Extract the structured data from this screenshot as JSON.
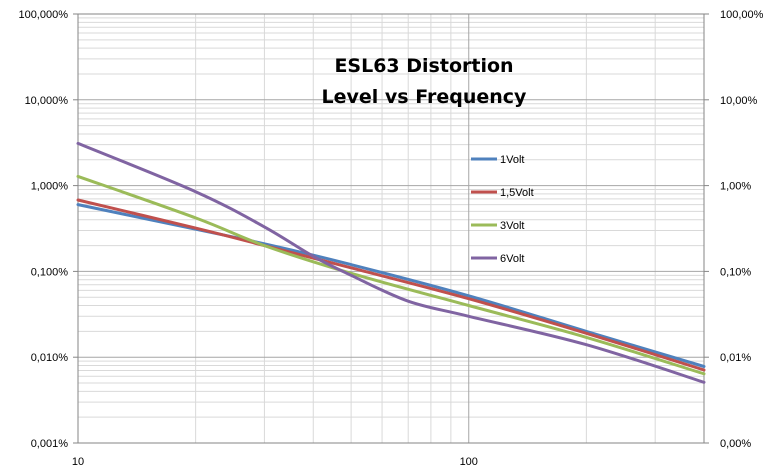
{
  "chart_data": {
    "type": "line",
    "title_lines": [
      "ESL63 Distortion",
      "Level vs Frequency"
    ],
    "xscale": "log",
    "yscale": "log",
    "xlim": [
      10,
      400
    ],
    "ylim": [
      0.001,
      100
    ],
    "x_ticks": [
      {
        "value": 10,
        "label": "10"
      },
      {
        "value": 100,
        "label": "100"
      }
    ],
    "y_ticks_left": [
      {
        "value": 100,
        "label": "100,000%"
      },
      {
        "value": 10,
        "label": "10,000%"
      },
      {
        "value": 1,
        "label": "1,000%"
      },
      {
        "value": 0.1,
        "label": "0,100%"
      },
      {
        "value": 0.01,
        "label": "0,010%"
      },
      {
        "value": 0.001,
        "label": "0,001%"
      }
    ],
    "y_ticks_right": [
      {
        "value": 100,
        "label": "100,00%"
      },
      {
        "value": 10,
        "label": "10,00%"
      },
      {
        "value": 1,
        "label": "1,00%"
      },
      {
        "value": 0.1,
        "label": "0,10%"
      },
      {
        "value": 0.01,
        "label": "0,01%"
      },
      {
        "value": 0.001,
        "label": "0,00%"
      }
    ],
    "grid": true,
    "legend_position": "right",
    "series": [
      {
        "name": "1Volt",
        "color": "#4f81bd",
        "points": [
          [
            10,
            0.6
          ],
          [
            20,
            0.31
          ],
          [
            30,
            0.21
          ],
          [
            50,
            0.12
          ],
          [
            100,
            0.052
          ],
          [
            200,
            0.02
          ],
          [
            400,
            0.0078
          ]
        ]
      },
      {
        "name": "1,5Volt",
        "color": "#c0504d",
        "points": [
          [
            10,
            0.68
          ],
          [
            20,
            0.32
          ],
          [
            30,
            0.2
          ],
          [
            50,
            0.11
          ],
          [
            100,
            0.048
          ],
          [
            200,
            0.019
          ],
          [
            400,
            0.0071
          ]
        ]
      },
      {
        "name": "3Volt",
        "color": "#9bbb59",
        "points": [
          [
            10,
            1.28
          ],
          [
            20,
            0.42
          ],
          [
            30,
            0.2
          ],
          [
            50,
            0.095
          ],
          [
            100,
            0.04
          ],
          [
            200,
            0.017
          ],
          [
            400,
            0.0064
          ]
        ]
      },
      {
        "name": "6Volt",
        "color": "#8064a2",
        "points": [
          [
            10,
            3.1
          ],
          [
            20,
            0.85
          ],
          [
            30,
            0.33
          ],
          [
            40,
            0.15
          ],
          [
            50,
            0.09
          ],
          [
            70,
            0.045
          ],
          [
            100,
            0.03
          ],
          [
            200,
            0.014
          ],
          [
            400,
            0.0051
          ]
        ]
      }
    ]
  }
}
